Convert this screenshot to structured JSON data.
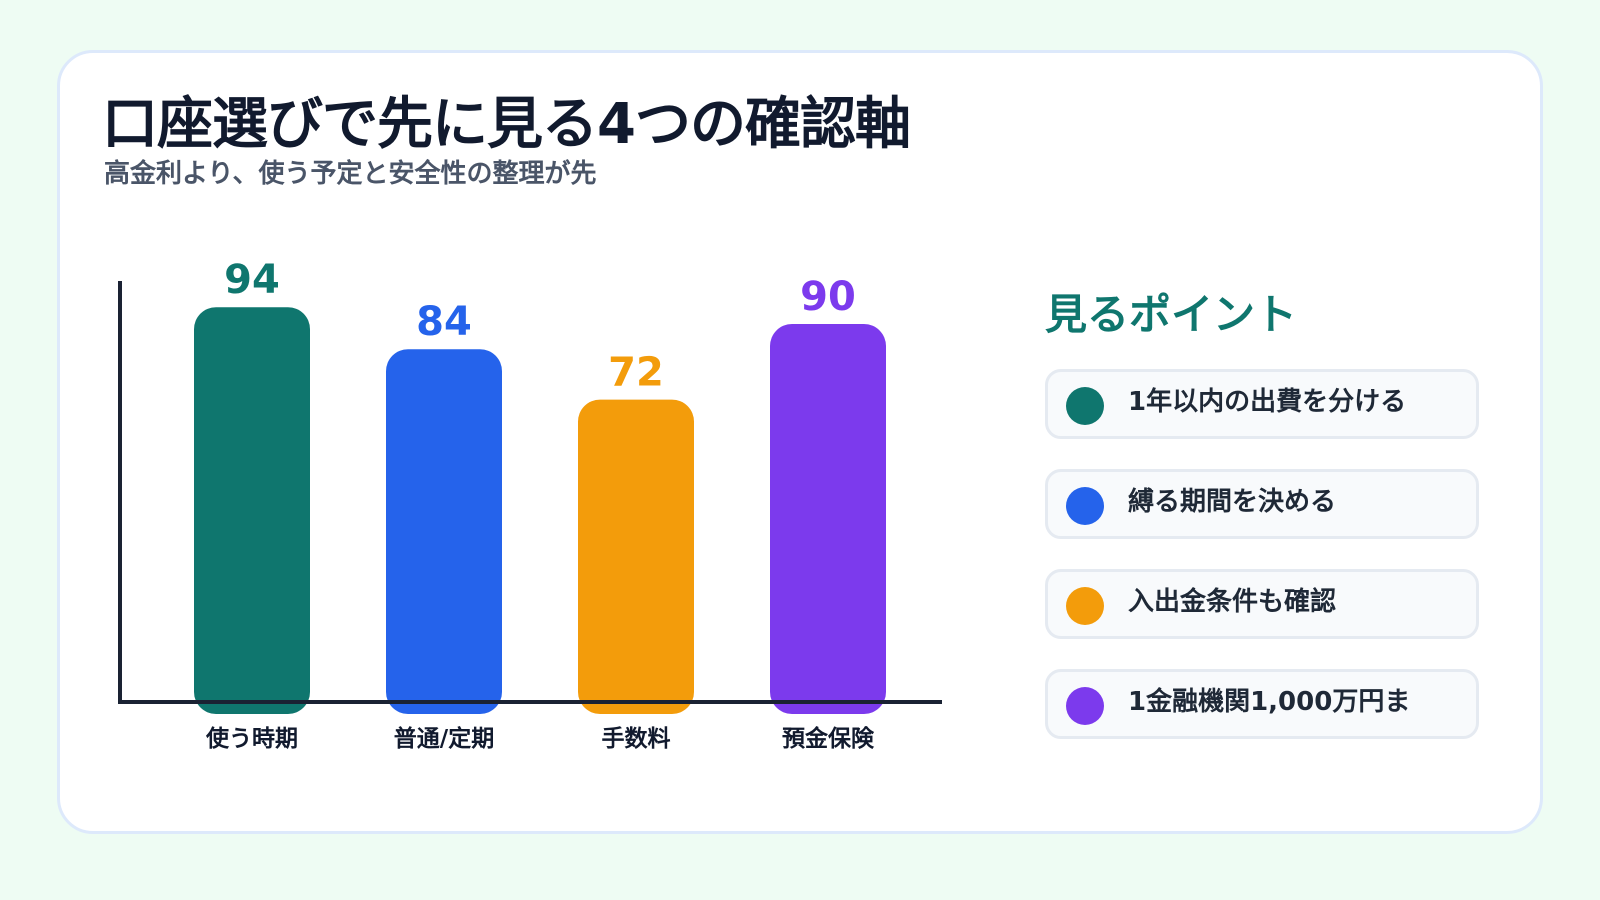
{
  "title": "口座選びで先に見る4つの確認軸",
  "subtitle": "高金利より、使う予定と安全性の整理が先",
  "chart_data": {
    "type": "bar",
    "categories": [
      "使う時期",
      "普通/定期",
      "手数料",
      "預金保険"
    ],
    "values": [
      94,
      84,
      72,
      90
    ],
    "colors": [
      "#0f766e",
      "#2563eb",
      "#f39c0b",
      "#7c3aed"
    ],
    "ylim": [
      0,
      100
    ],
    "grid": false,
    "data_labels": true
  },
  "points": {
    "title": "見るポイント",
    "items": [
      {
        "label": "1年以内の出費を分ける",
        "color": "#0f766e"
      },
      {
        "label": "縛る期間を決める",
        "color": "#2563eb"
      },
      {
        "label": "入出金条件も確認",
        "color": "#f39c0b"
      },
      {
        "label": "1金融機関1,000万円ま",
        "color": "#7c3aed"
      }
    ]
  }
}
